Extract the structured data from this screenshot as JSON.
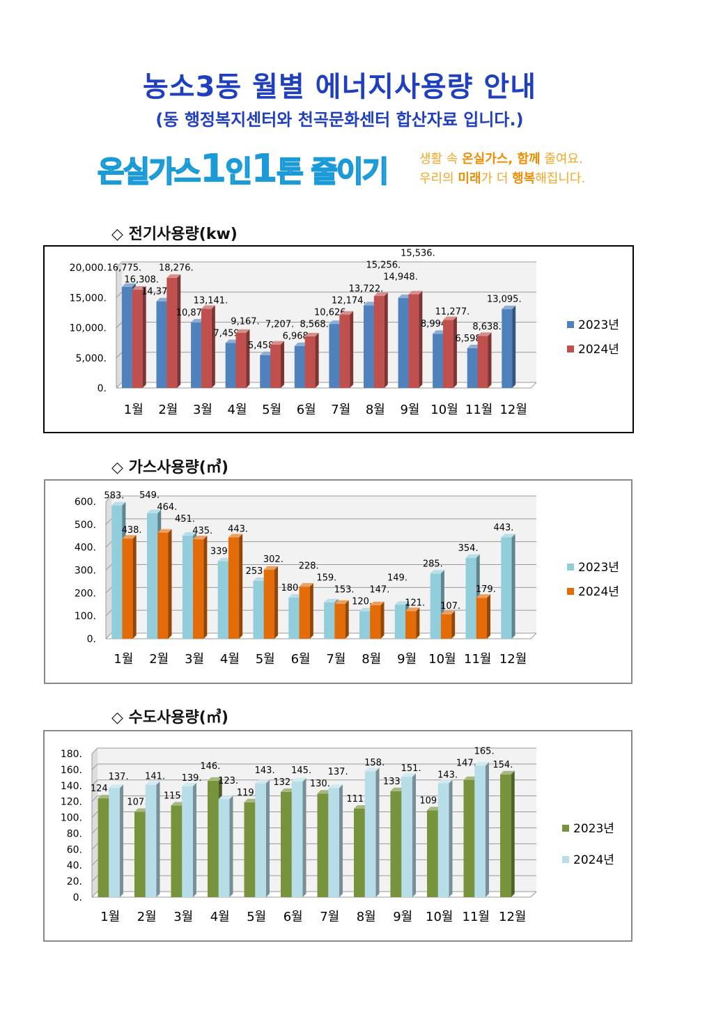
{
  "title": "농소3동 월별 에너지사용량 안내",
  "subtitle": "(동 행정복지센터와 천곡문화센터 합산자료 입니다.)",
  "banner": {
    "logo_a": "온실가스",
    "logo_1": "1",
    "logo_b": "인",
    "logo_2": "1",
    "logo_c": "톤 줄이기",
    "slogan_line1_a": "생활 속 ",
    "slogan_line1_b": "온실가스, 함께",
    "slogan_line1_c": " 줄여요.",
    "slogan_line2_a": "우리의 ",
    "slogan_line2_b": "미래",
    "slogan_line2_c": "가 더 ",
    "slogan_line2_d": "행복",
    "slogan_line2_e": "해집니다."
  },
  "sections": [
    {
      "heading": "◇ 전기사용량(kw)"
    },
    {
      "heading": "◇ 가스사용량(㎥)"
    },
    {
      "heading": "◇ 수도사용량(㎥)"
    }
  ],
  "chart_data": [
    {
      "type": "bar",
      "title": "",
      "categories": [
        "1월",
        "2월",
        "3월",
        "4월",
        "5월",
        "6월",
        "7월",
        "8월",
        "9월",
        "10월",
        "11월",
        "12월"
      ],
      "ylim": [
        0,
        20000
      ],
      "yticks": [
        0,
        5000,
        10000,
        15000,
        20000
      ],
      "ytick_labels": [
        "0.",
        "5,000.",
        "10,000.",
        "15,000.",
        "20,000."
      ],
      "grid": true,
      "legend": "right",
      "series": [
        {
          "name": "2023년",
          "color": "#4F81BD",
          "values": [
            16775,
            14376,
            10875,
            7459,
            5458,
            6968,
            10626,
            13722,
            14948,
            8994,
            6598,
            13095
          ],
          "labels": [
            "16,775.",
            "14,376.",
            "10,875.",
            "7,459.",
            "5,458.",
            "6,968.",
            "10,626.",
            "13,722.",
            "14,948.",
            "8,994.",
            "6,598.",
            "13,095."
          ]
        },
        {
          "name": "2024년",
          "color": "#C0504D",
          "values": [
            16308,
            18276,
            13141,
            9167,
            7207,
            8568,
            12174,
            15256,
            15536,
            11277,
            8638,
            null
          ],
          "labels": [
            "16,308.",
            "18,276.",
            "13,141.",
            "9,167.",
            "7,207.",
            "8,568.",
            "12,174.",
            "15,256.",
            "15,536.",
            "11,277.",
            "8,638.",
            ""
          ]
        }
      ]
    },
    {
      "type": "bar",
      "title": "",
      "categories": [
        "1월",
        "2월",
        "3월",
        "4월",
        "5월",
        "6월",
        "7월",
        "8월",
        "9월",
        "10월",
        "11월",
        "12월"
      ],
      "ylim": [
        0,
        600
      ],
      "yticks": [
        0,
        100,
        200,
        300,
        400,
        500,
        600
      ],
      "ytick_labels": [
        "0.",
        "100.",
        "200.",
        "300.",
        "400.",
        "500.",
        "600."
      ],
      "grid": true,
      "legend": "right",
      "series": [
        {
          "name": "2023년",
          "color": "#92CDDC",
          "values": [
            583,
            549,
            451,
            339,
            253,
            180,
            159,
            120,
            149,
            285,
            354,
            443
          ],
          "labels": [
            "583.",
            "549.",
            "451.",
            "339.",
            "253.",
            "180.",
            "159.",
            "120.",
            "149.",
            "285.",
            "354.",
            "443."
          ]
        },
        {
          "name": "2024년",
          "color": "#E36C09",
          "values": [
            438,
            464,
            435,
            443,
            302,
            228,
            153,
            147,
            121,
            107,
            179,
            null
          ],
          "labels": [
            "438.",
            "464.",
            "435.",
            "443.",
            "302.",
            "228.",
            "153.",
            "147.",
            "121.",
            "107.",
            "179.",
            ""
          ]
        }
      ]
    },
    {
      "type": "bar",
      "title": "",
      "categories": [
        "1월",
        "2월",
        "3월",
        "4월",
        "5월",
        "6월",
        "7월",
        "8월",
        "9월",
        "10월",
        "11월",
        "12월"
      ],
      "ylim": [
        0,
        180
      ],
      "yticks": [
        0,
        20,
        40,
        60,
        80,
        100,
        120,
        140,
        160,
        180
      ],
      "ytick_labels": [
        "0.",
        "20.",
        "40.",
        "60.",
        "80.",
        "100.",
        "120.",
        "140.",
        "160.",
        "180."
      ],
      "grid": true,
      "legend": "right",
      "series": [
        {
          "name": "2023년",
          "color": "#77933C",
          "values": [
            124,
            107,
            115,
            146,
            119,
            132,
            130,
            111,
            133,
            109,
            147,
            154
          ],
          "labels": [
            "124.",
            "107.",
            "115.",
            "146.",
            "119.",
            "132.",
            "130.",
            "111.",
            "133.",
            "109.",
            "147.",
            "154."
          ]
        },
        {
          "name": "2024년",
          "color": "#B7DEE8",
          "values": [
            137,
            141,
            139,
            123,
            143,
            145,
            137,
            158,
            151,
            143,
            165,
            null
          ],
          "labels": [
            "137.",
            "141.",
            "139.",
            "123.",
            "143.",
            "145.",
            "137.",
            "158.",
            "151.",
            "143.",
            "165.",
            ""
          ]
        }
      ]
    }
  ]
}
